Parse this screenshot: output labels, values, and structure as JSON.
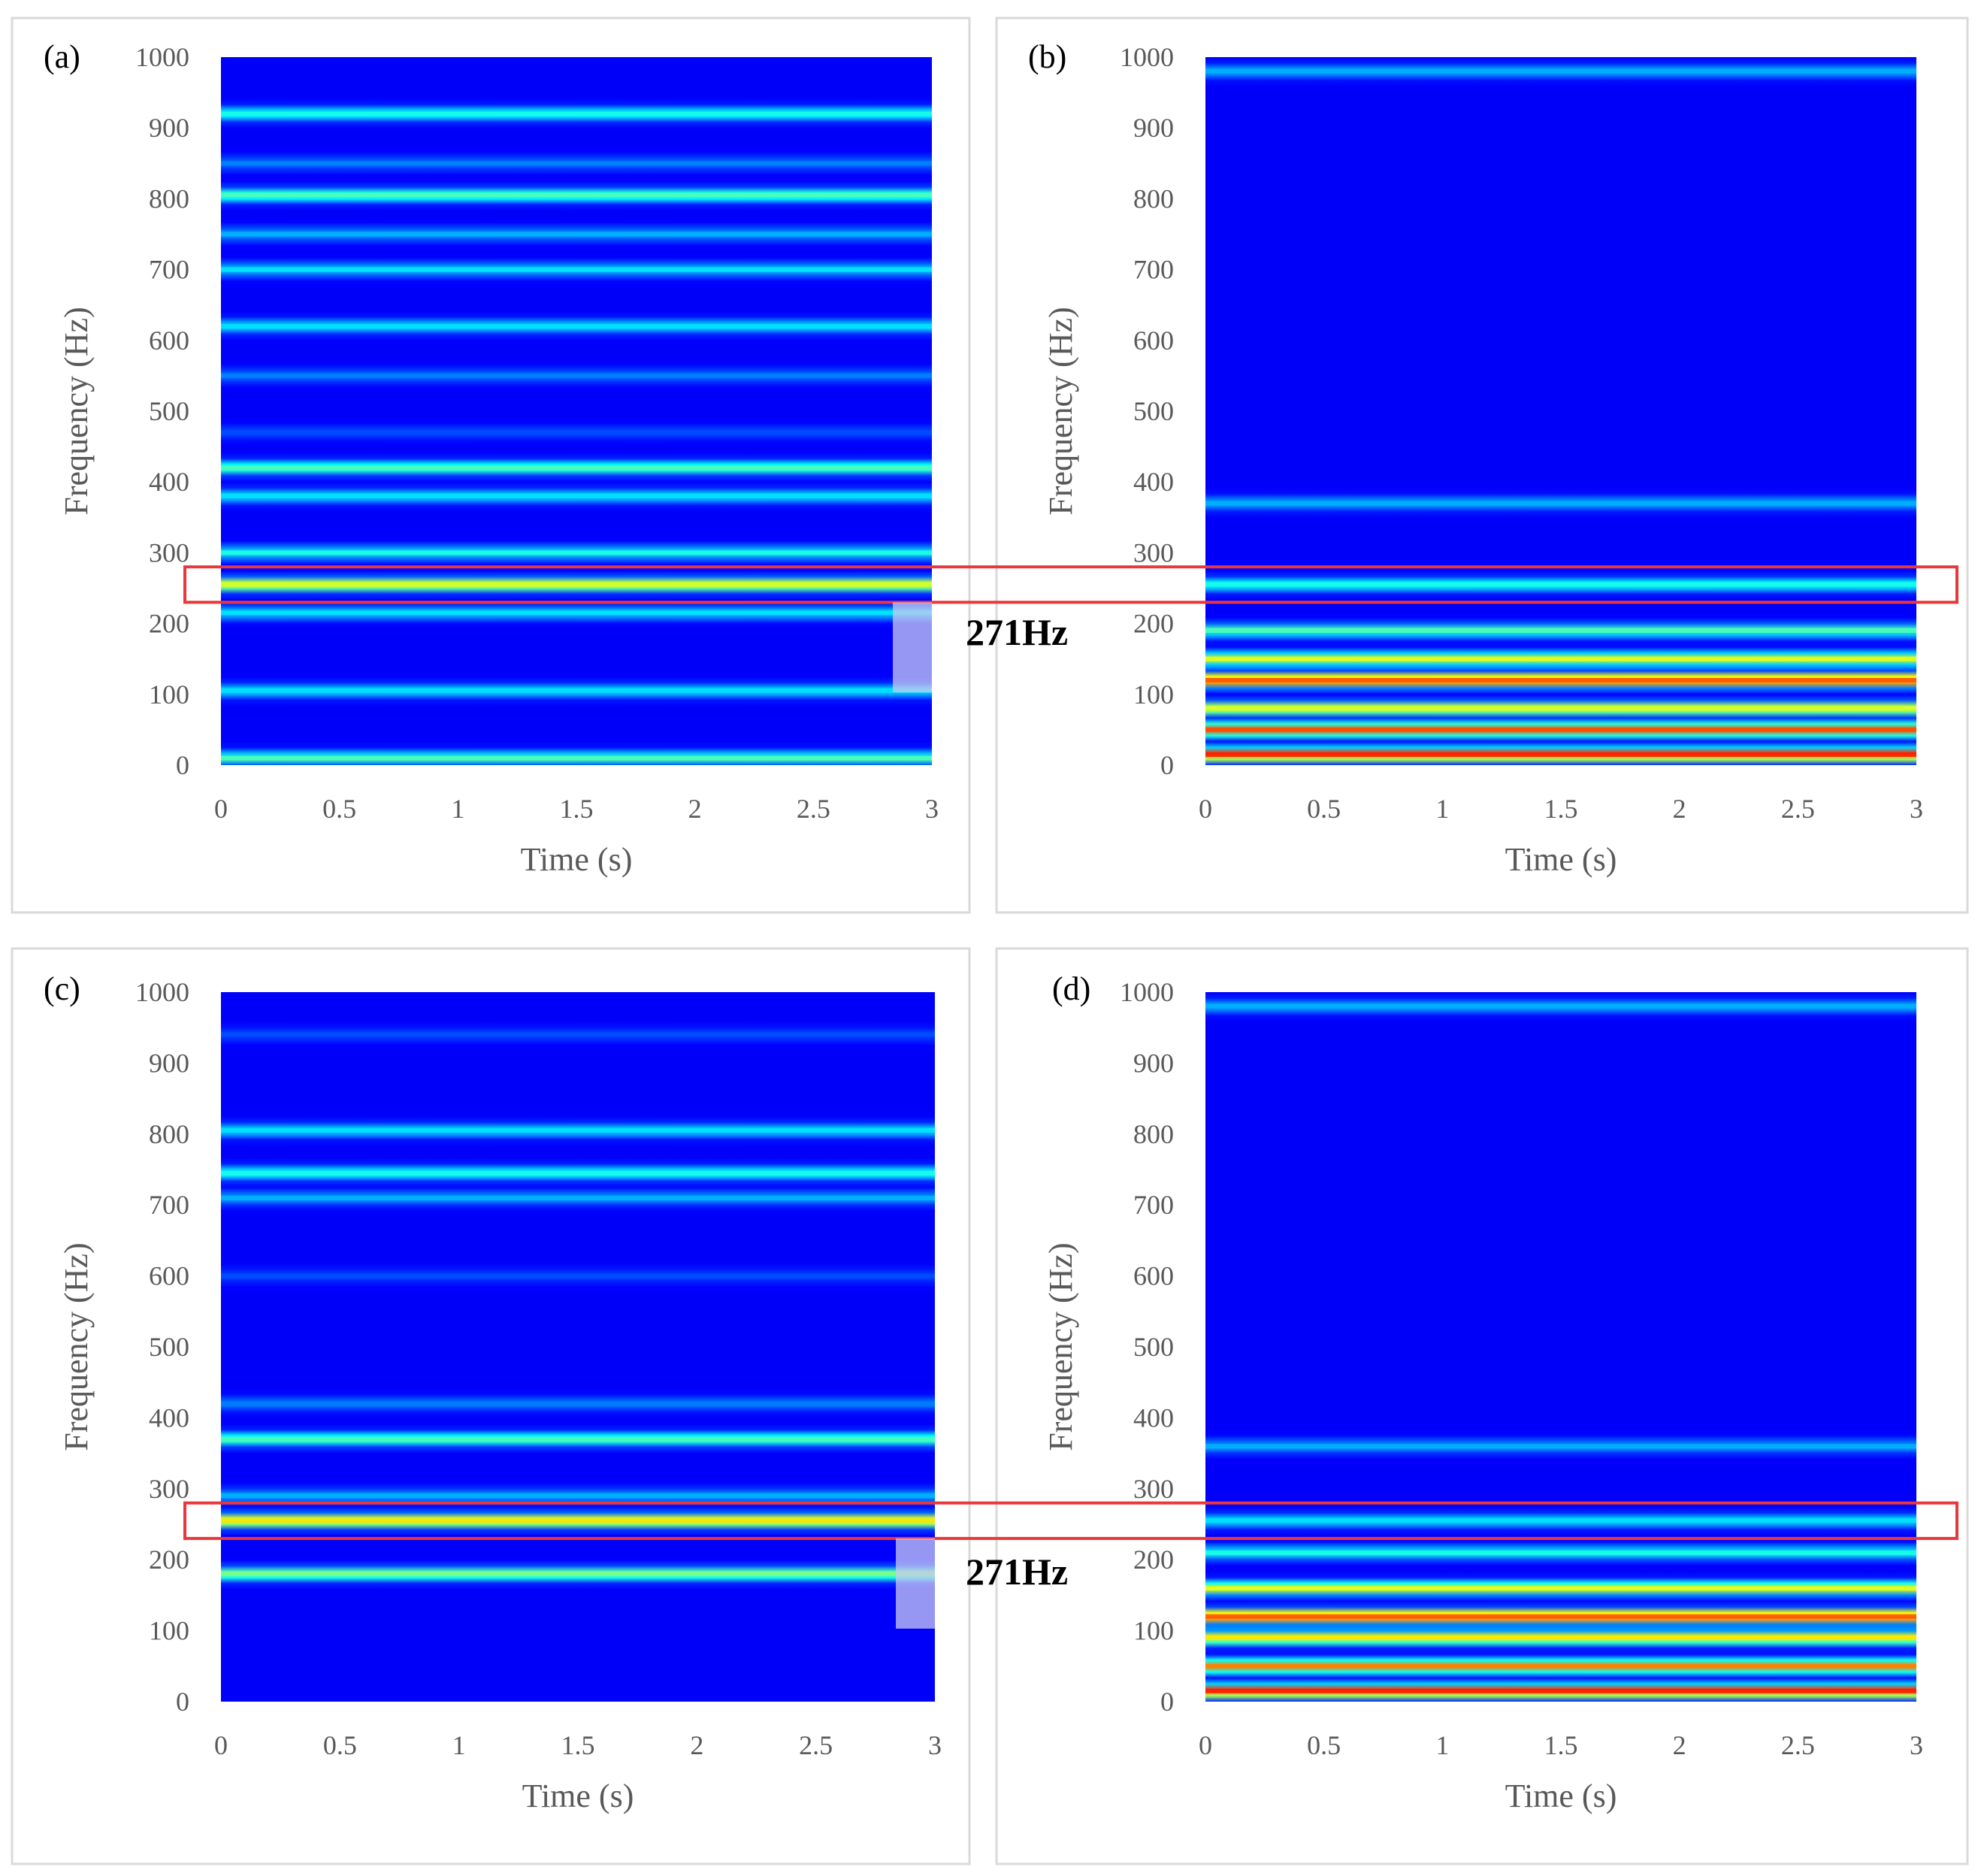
{
  "colors": {
    "background_low": "#0a1fa8",
    "highlight_box": "#e8383d",
    "frame": "#d9d9d9",
    "tick_text": "#595959"
  },
  "annotation_label": "271Hz",
  "chart_data": [
    {
      "panel_label": "(a)",
      "type": "heatmap",
      "colormap": "jet",
      "xlabel": "Time (s)",
      "ylabel": "Frequency (Hz)",
      "xlim": [
        0,
        3
      ],
      "ylim": [
        0,
        1000
      ],
      "xticks": [
        "0",
        "0.5",
        "1",
        "1.5",
        "2",
        "2.5",
        "3"
      ],
      "yticks": [
        "0",
        "100",
        "200",
        "300",
        "400",
        "500",
        "600",
        "700",
        "800",
        "900",
        "1000"
      ],
      "bands": [
        {
          "freq": 10,
          "intensity": 0.45
        },
        {
          "freq": 105,
          "intensity": 0.35
        },
        {
          "freq": 215,
          "intensity": 0.35
        },
        {
          "freq": 255,
          "intensity": 0.6
        },
        {
          "freq": 300,
          "intensity": 0.4
        },
        {
          "freq": 380,
          "intensity": 0.35
        },
        {
          "freq": 420,
          "intensity": 0.45
        },
        {
          "freq": 470,
          "intensity": 0.2
        },
        {
          "freq": 550,
          "intensity": 0.25
        },
        {
          "freq": 620,
          "intensity": 0.35
        },
        {
          "freq": 700,
          "intensity": 0.35
        },
        {
          "freq": 750,
          "intensity": 0.3
        },
        {
          "freq": 805,
          "intensity": 0.45
        },
        {
          "freq": 850,
          "intensity": 0.25
        },
        {
          "freq": 920,
          "intensity": 0.4
        }
      ],
      "highlight_range": [
        230,
        280
      ]
    },
    {
      "panel_label": "(b)",
      "type": "heatmap",
      "colormap": "jet",
      "xlabel": "Time (s)",
      "ylabel": "Frequency (Hz)",
      "xlim": [
        0,
        3
      ],
      "ylim": [
        0,
        1000
      ],
      "xticks": [
        "0",
        "0.5",
        "1",
        "1.5",
        "2",
        "2.5",
        "3"
      ],
      "yticks": [
        "0",
        "100",
        "200",
        "300",
        "400",
        "500",
        "600",
        "700",
        "800",
        "900",
        "1000"
      ],
      "bands": [
        {
          "freq": 15,
          "intensity": 0.85
        },
        {
          "freq": 50,
          "intensity": 0.8
        },
        {
          "freq": 80,
          "intensity": 0.6
        },
        {
          "freq": 120,
          "intensity": 0.8
        },
        {
          "freq": 150,
          "intensity": 0.6
        },
        {
          "freq": 190,
          "intensity": 0.45
        },
        {
          "freq": 255,
          "intensity": 0.4
        },
        {
          "freq": 370,
          "intensity": 0.3
        },
        {
          "freq": 980,
          "intensity": 0.3
        }
      ],
      "highlight_range": [
        230,
        280
      ]
    },
    {
      "panel_label": "(c)",
      "type": "heatmap",
      "colormap": "jet",
      "xlabel": "Time (s)",
      "ylabel": "Frequency (Hz)",
      "xlim": [
        0,
        3
      ],
      "ylim": [
        0,
        1000
      ],
      "xticks": [
        "0",
        "0.5",
        "1",
        "1.5",
        "2",
        "2.5",
        "3"
      ],
      "yticks": [
        "0",
        "100",
        "200",
        "300",
        "400",
        "500",
        "600",
        "700",
        "800",
        "900",
        "1000"
      ],
      "bands": [
        {
          "freq": 180,
          "intensity": 0.5
        },
        {
          "freq": 255,
          "intensity": 0.65
        },
        {
          "freq": 290,
          "intensity": 0.3
        },
        {
          "freq": 370,
          "intensity": 0.45
        },
        {
          "freq": 420,
          "intensity": 0.25
        },
        {
          "freq": 600,
          "intensity": 0.2
        },
        {
          "freq": 710,
          "intensity": 0.3
        },
        {
          "freq": 745,
          "intensity": 0.4
        },
        {
          "freq": 805,
          "intensity": 0.35
        },
        {
          "freq": 940,
          "intensity": 0.2
        }
      ],
      "highlight_range": [
        230,
        280
      ]
    },
    {
      "panel_label": "(d)",
      "type": "heatmap",
      "colormap": "jet",
      "xlabel": "Time (s)",
      "ylabel": "Frequency (Hz)",
      "xlim": [
        0,
        3
      ],
      "ylim": [
        0,
        1000
      ],
      "xticks": [
        "0",
        "0.5",
        "1",
        "1.5",
        "2",
        "2.5",
        "3"
      ],
      "yticks": [
        "0",
        "100",
        "200",
        "300",
        "400",
        "500",
        "600",
        "700",
        "800",
        "900",
        "1000"
      ],
      "bands": [
        {
          "freq": 15,
          "intensity": 0.85
        },
        {
          "freq": 50,
          "intensity": 0.75
        },
        {
          "freq": 90,
          "intensity": 0.65
        },
        {
          "freq": 120,
          "intensity": 0.8
        },
        {
          "freq": 160,
          "intensity": 0.6
        },
        {
          "freq": 210,
          "intensity": 0.4
        },
        {
          "freq": 255,
          "intensity": 0.35
        },
        {
          "freq": 360,
          "intensity": 0.3
        },
        {
          "freq": 980,
          "intensity": 0.3
        }
      ],
      "highlight_range": [
        230,
        280
      ]
    }
  ]
}
